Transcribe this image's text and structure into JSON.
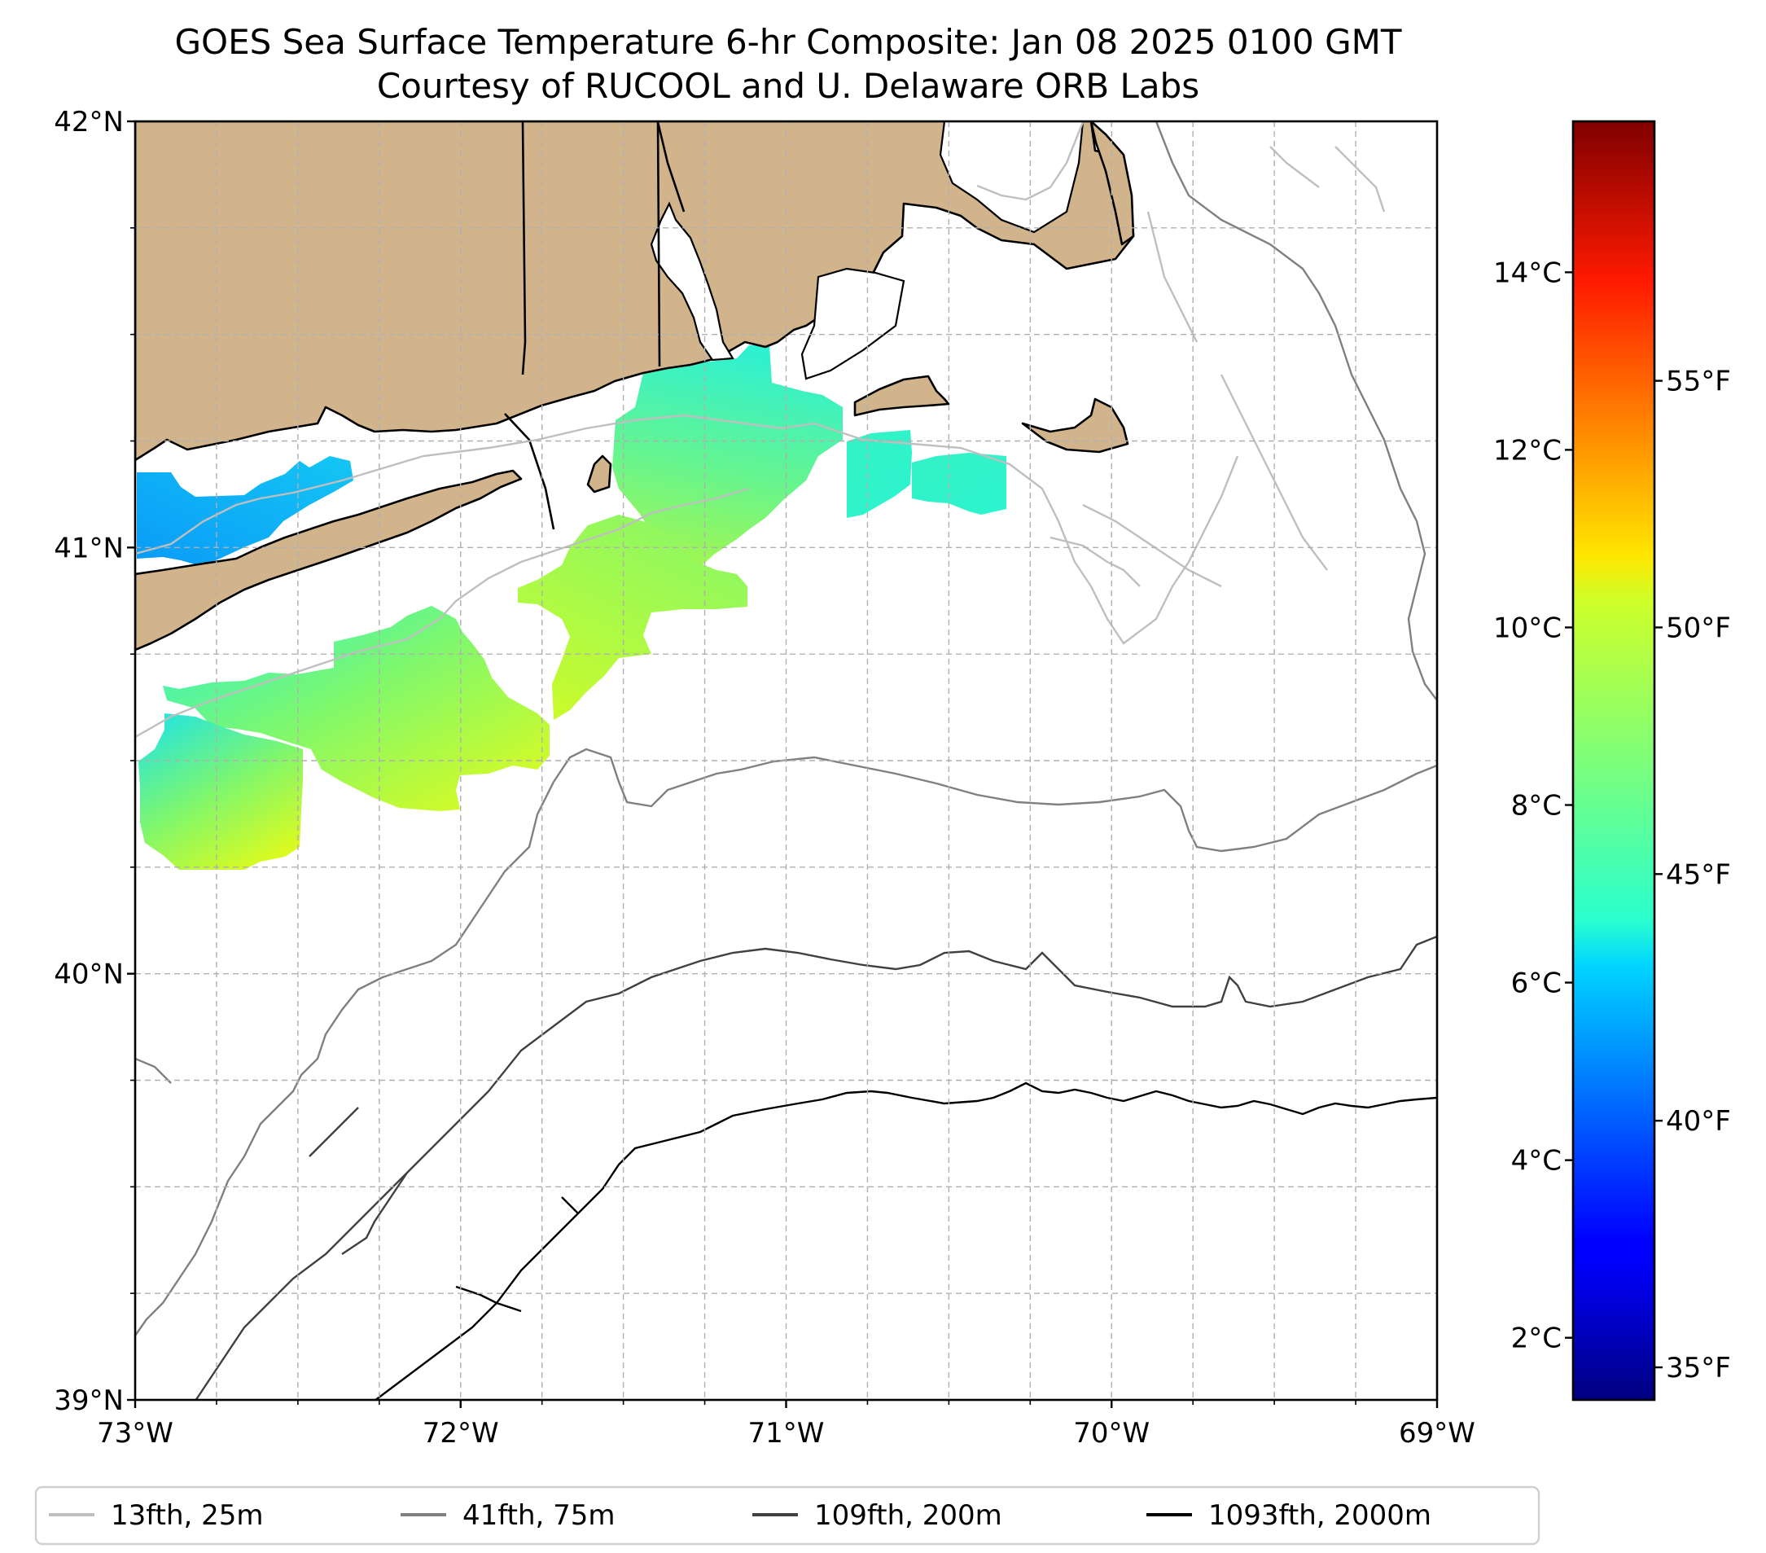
{
  "title": {
    "line1": "GOES Sea Surface Temperature 6-hr Composite: Jan 08 2025 0100 GMT",
    "line2": "Courtesy of RUCOOL and U. Delaware ORB Labs"
  },
  "map": {
    "lon_range": [
      -73,
      -69
    ],
    "lat_range": [
      39,
      42
    ],
    "x_ticks": [
      {
        "lon": -73,
        "label": "73°W"
      },
      {
        "lon": -72,
        "label": "72°W"
      },
      {
        "lon": -71,
        "label": "71°W"
      },
      {
        "lon": -70,
        "label": "70°W"
      },
      {
        "lon": -69,
        "label": "69°W"
      }
    ],
    "y_ticks": [
      {
        "lat": 42,
        "label": "42°N"
      },
      {
        "lat": 41,
        "label": "41°N"
      },
      {
        "lat": 40,
        "label": "40°N"
      },
      {
        "lat": 39,
        "label": "39°N"
      }
    ],
    "grid": "dashed, every 0.25 degrees",
    "land_color": "#D2B48C",
    "coastline_color": "#000000"
  },
  "colorbar": {
    "colormap": "jet",
    "range_c": [
      1.3,
      15.7
    ],
    "celsius_ticks": [
      {
        "value": 2,
        "label": "2°C"
      },
      {
        "value": 4,
        "label": "4°C"
      },
      {
        "value": 6,
        "label": "6°C"
      },
      {
        "value": 8,
        "label": "8°C"
      },
      {
        "value": 10,
        "label": "10°C"
      },
      {
        "value": 12,
        "label": "12°C"
      },
      {
        "value": 14,
        "label": "14°C"
      }
    ],
    "fahrenheit_ticks": [
      {
        "value": 35,
        "label": "35°F"
      },
      {
        "value": 40,
        "label": "40°F"
      },
      {
        "value": 45,
        "label": "45°F"
      },
      {
        "value": 50,
        "label": "50°F"
      },
      {
        "value": 55,
        "label": "55°F"
      }
    ]
  },
  "legend": {
    "placement": "bottom",
    "items": [
      {
        "label": "13fth, 25m",
        "color": "#bfbfbf"
      },
      {
        "label": "41fth, 75m",
        "color": "#808080"
      },
      {
        "label": "109fth, 200m",
        "color": "#404040"
      },
      {
        "label": "1093fth, 2000m",
        "color": "#000000"
      }
    ]
  },
  "sst_patches": [
    {
      "name": "long-island-sound",
      "lon": [
        -73,
        -72.32
      ],
      "lat": [
        41.02,
        41.2
      ],
      "temp_c": [
        5.0,
        5.7
      ]
    },
    {
      "name": "block-island-nantucket-shoals",
      "lon": [
        -71.55,
        -71.2
      ],
      "lat": [
        41.0,
        41.45
      ],
      "temp_c": [
        6.2,
        8.0
      ]
    },
    {
      "name": "south-of-marthas-vineyard",
      "lon": [
        -70.83,
        -70.35
      ],
      "lat": [
        41.1,
        41.3
      ],
      "temp_c": [
        6.5,
        7.0
      ]
    },
    {
      "name": "shelf-south-of-rhode-island",
      "lon": [
        -71.8,
        -71.1
      ],
      "lat": [
        40.6,
        41.1
      ],
      "temp_c": [
        8.5,
        9.8
      ]
    },
    {
      "name": "shelf-south-of-long-island",
      "lon": [
        -72.8,
        -71.8
      ],
      "lat": [
        40.45,
        40.9
      ],
      "temp_c": [
        6.5,
        9.8
      ]
    },
    {
      "name": "new-york-bight-west",
      "lon": [
        -73,
        -72.5
      ],
      "lat": [
        40.25,
        40.7
      ],
      "temp_c": [
        6.3,
        9.8
      ]
    }
  ]
}
